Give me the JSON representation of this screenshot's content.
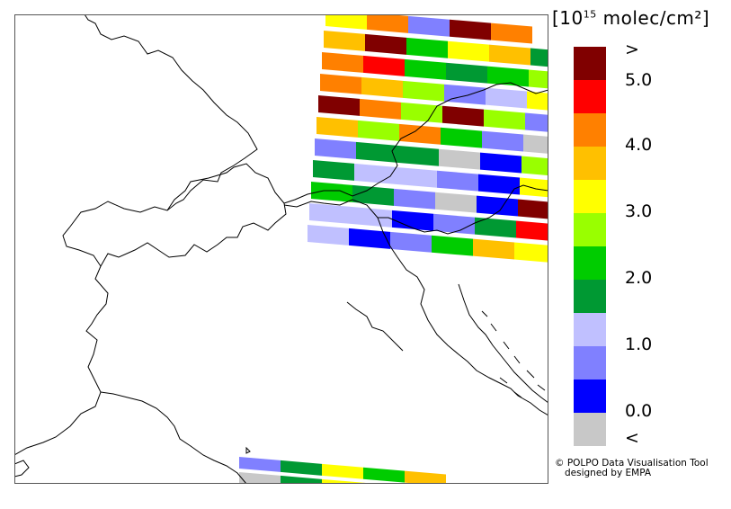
{
  "legend": {
    "units_prefix": "[10",
    "units_exponent": "15",
    "units_suffix": " molec/cm²]",
    "labels": [
      ">",
      "5.0",
      "4.0",
      "3.0",
      "2.0",
      "1.0",
      "0.0",
      "<"
    ],
    "colors": [
      "#800000",
      "#ff0000",
      "#ff8000",
      "#ffc000",
      "#ffff00",
      "#99ff00",
      "#00cc00",
      "#009933",
      "#c0c0ff",
      "#8080ff",
      "#0000ff",
      "#c8c8c8"
    ]
  },
  "credit": {
    "line1": "© POLPO Data Visualisation Tool",
    "line2": "designed by EMPA"
  },
  "map": {
    "background": "#ffffff",
    "border_color": "#000000",
    "pixel_swath_top_colors": [
      [
        "#ffff00",
        "#ff8000",
        "#8080ff",
        "#800000",
        "#ff8000"
      ],
      [
        "#ffc000",
        "#800000",
        "#00cc00",
        "#ffff00",
        "#ffc000",
        "#009933"
      ],
      [
        "#ff8000",
        "#ff0000",
        "#00cc00",
        "#009933",
        "#00cc00",
        "#99ff00"
      ],
      [
        "#ff8000",
        "#ffc000",
        "#99ff00",
        "#8080ff",
        "#c0c0ff",
        "#ffff00"
      ],
      [
        "#800000",
        "#ff8000",
        "#99ff00",
        "#800000",
        "#99ff00",
        "#8080ff"
      ],
      [
        "#ffc000",
        "#99ff00",
        "#ff8000",
        "#00cc00",
        "#8080ff",
        "#c8c8c8"
      ],
      [
        "#8080ff",
        "#009933",
        "#009933",
        "#c8c8c8",
        "#0000ff",
        "#99ff00"
      ],
      [
        "#009933",
        "#c0c0ff",
        "#c0c0ff",
        "#8080ff",
        "#0000ff",
        "#ffff00"
      ],
      [
        "#00cc00",
        "#009933",
        "#8080ff",
        "#c8c8c8",
        "#0000ff",
        "#800000"
      ],
      [
        "#c0c0ff",
        "#c0c0ff",
        "#0000ff",
        "#8080ff",
        "#009933",
        "#ff0000"
      ],
      [
        "#c0c0ff",
        "#0000ff",
        "#8080ff",
        "#00cc00",
        "#ffc000",
        "#ffff00"
      ]
    ],
    "pixel_swath_bottom_colors": [
      [
        "#8080ff",
        "#009933",
        "#ffff00",
        "#00cc00",
        "#ffc000"
      ],
      [
        "#c8c8c8",
        "#009933",
        "#ffff00",
        "#ffc000"
      ]
    ]
  }
}
